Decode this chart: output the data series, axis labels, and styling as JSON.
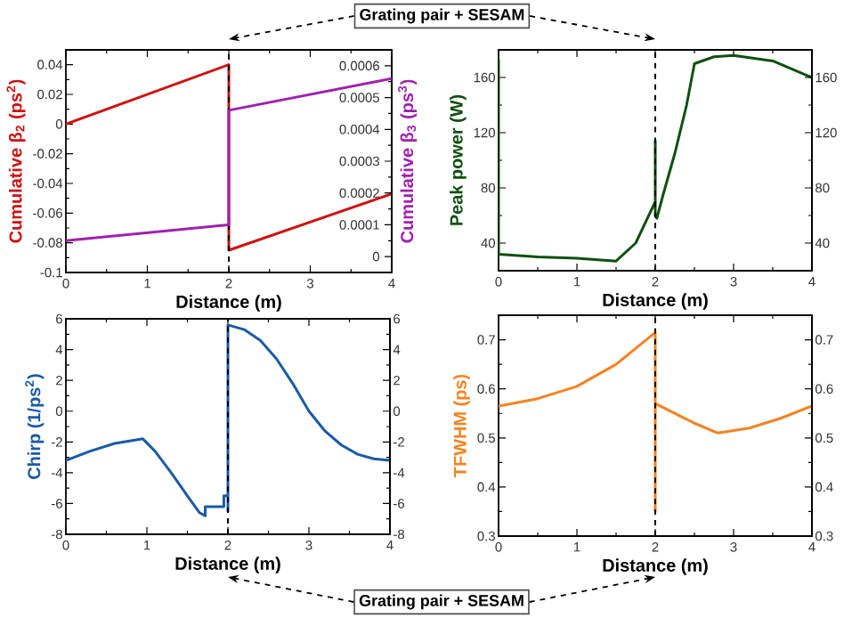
{
  "chart_data": [
    {
      "type": "line",
      "xlabel": "Distance (m)",
      "ylabel": "Cumulative β$_{2}$ (ps$^{2}$)",
      "y2label": "Cumulative β$_{3}$ (ps$^{3}$)",
      "xlim": [
        0,
        4
      ],
      "xticks": [
        0,
        1,
        2,
        3,
        4
      ],
      "ylim": [
        -0.1,
        0.05
      ],
      "yticks": [
        -0.1,
        -0.08,
        -0.06,
        -0.04,
        -0.02,
        0,
        0.02,
        0.04
      ],
      "y2lim": [
        -5e-05,
        0.00065
      ],
      "y2ticks": [
        0,
        0.0001,
        0.0002,
        0.0003,
        0.0004,
        0.0005,
        0.0006
      ],
      "series": [
        {
          "color": "#d01010",
          "x": [
            0,
            2,
            2,
            4
          ],
          "values": [
            0,
            0.04,
            -0.085,
            -0.047
          ]
        },
        {
          "color": "#a020b0",
          "axis": "y2",
          "x": [
            0,
            2,
            2,
            4
          ],
          "values": [
            5e-05,
            0.0001,
            0.00046,
            0.00056
          ]
        }
      ],
      "ref_lines": [
        {
          "axis": "x",
          "value": 2,
          "color": "#000000",
          "line_style": "dashed"
        }
      ],
      "annotations": [
        "Grating pair + SESAM"
      ]
    },
    {
      "type": "line",
      "xlabel": "Distance (m)",
      "ylabel": "Peak power (W)",
      "xlim": [
        0,
        4
      ],
      "xticks": [
        0,
        1,
        2,
        3,
        4
      ],
      "ylim": [
        20,
        180
      ],
      "yticks": [
        40,
        80,
        120,
        160
      ],
      "y2lim": [
        20,
        180
      ],
      "y2ticks": [
        40,
        80,
        120,
        160
      ],
      "series": [
        {
          "color": "#105010",
          "x": [
            0,
            0,
            0.5,
            1,
            1.5,
            1.75,
            2,
            2,
            2,
            2.02,
            2.1,
            2.25,
            2.4,
            2.5,
            2.75,
            3,
            3.5,
            4
          ],
          "values": [
            173,
            32,
            30,
            29,
            27,
            40,
            70,
            114,
            60,
            58,
            75,
            105,
            140,
            170,
            175,
            176,
            172,
            160
          ]
        }
      ],
      "ref_lines": [
        {
          "axis": "x",
          "value": 2,
          "color": "#000000",
          "line_style": "dashed"
        }
      ]
    },
    {
      "type": "line",
      "xlabel": "Distance (m)",
      "ylabel": "Chirp (1/ps$^{2}$)",
      "xlim": [
        0,
        4
      ],
      "xticks": [
        0,
        1,
        2,
        3,
        4
      ],
      "ylim": [
        -8,
        6
      ],
      "yticks": [
        -8,
        -6,
        -4,
        -2,
        0,
        2,
        4,
        6
      ],
      "y2lim": [
        -8,
        6
      ],
      "y2ticks": [
        -8,
        -6,
        -4,
        -2,
        0,
        2,
        4,
        6
      ],
      "series": [
        {
          "color": "#1a5aa8",
          "x": [
            0,
            0.3,
            0.6,
            0.95,
            1.1,
            1.3,
            1.5,
            1.65,
            1.72,
            1.72,
            1.95,
            1.95,
            2,
            2,
            2,
            2.2,
            2.4,
            2.6,
            2.8,
            3,
            3.2,
            3.4,
            3.6,
            3.8,
            4
          ],
          "values": [
            -3.2,
            -2.6,
            -2.1,
            -1.8,
            -2.6,
            -4.0,
            -5.5,
            -6.6,
            -6.8,
            -6.2,
            -6.2,
            -5.5,
            -5.5,
            -6.5,
            5.6,
            5.3,
            4.6,
            3.4,
            1.8,
            0,
            -1.3,
            -2.2,
            -2.8,
            -3.1,
            -3.2
          ]
        }
      ],
      "ref_lines": [
        {
          "axis": "x",
          "value": 2,
          "color": "#000000",
          "line_style": "dashed"
        }
      ],
      "annotations": [
        "Grating pair + SESAM"
      ]
    },
    {
      "type": "line",
      "xlabel": "Distance (m)",
      "ylabel": "TFWHM (ps)",
      "xlim": [
        0,
        4
      ],
      "xticks": [
        0,
        1,
        2,
        3,
        4
      ],
      "ylim": [
        0.3,
        0.75
      ],
      "yticks": [
        0.3,
        0.4,
        0.5,
        0.6,
        0.7
      ],
      "y2lim": [
        0.3,
        0.75
      ],
      "y2ticks": [
        0.3,
        0.4,
        0.5,
        0.6,
        0.7
      ],
      "series": [
        {
          "color": "#f5821f",
          "x": [
            0,
            0.5,
            1,
            1.5,
            2,
            2,
            2,
            2.5,
            2.8,
            3.2,
            3.6,
            4
          ],
          "values": [
            0.565,
            0.58,
            0.605,
            0.65,
            0.715,
            0.35,
            0.57,
            0.53,
            0.51,
            0.52,
            0.54,
            0.565
          ]
        }
      ],
      "ref_lines": [
        {
          "axis": "x",
          "value": 2,
          "color": "#000000",
          "line_style": "dashed"
        }
      ]
    }
  ]
}
